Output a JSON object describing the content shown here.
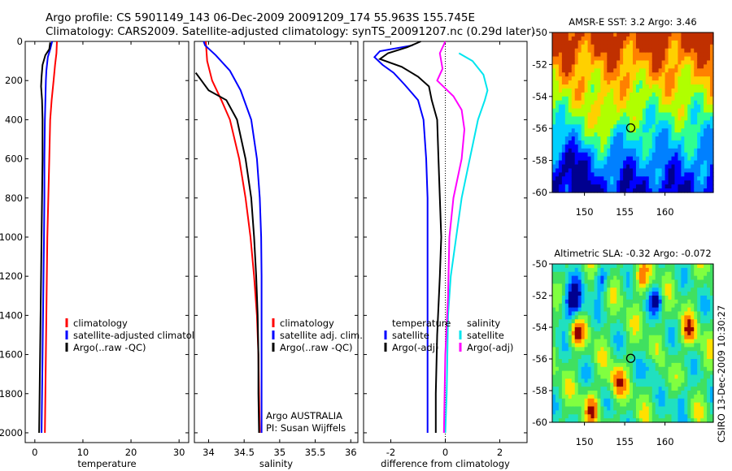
{
  "header": {
    "line1": "Argo profile: CS 5901149_143 06-Dec-2009 20091209_174 55.963S 155.745E",
    "line2": "Climatology: CARS2009. Satellite-adjusted climatology: synTS_20091207.nc (0.29d later)"
  },
  "colors": {
    "climatology": "#ff0000",
    "satellite": "#0000ff",
    "argo": "#000000",
    "satellite_diff": "#00e5ee",
    "argo_adj_diff": "#ff00ff"
  },
  "chart_data": [
    {
      "type": "line",
      "id": "temperature",
      "xlabel": "temperature",
      "ylabel": "",
      "xlim": [
        -2,
        32
      ],
      "ylim": [
        2050,
        0
      ],
      "xticks": [
        0,
        10,
        20,
        30
      ],
      "yticks": [
        0,
        200,
        400,
        600,
        800,
        1000,
        1200,
        1400,
        1600,
        1800,
        2000
      ],
      "legend": [
        "climatology",
        "satellite-adjusted climatology",
        "Argo(..raw -QC)"
      ],
      "legend_position": "lower-right",
      "series": [
        {
          "name": "climatology",
          "color": "#ff0000",
          "points": [
            [
              4.6,
              0
            ],
            [
              4.5,
              60
            ],
            [
              4.2,
              120
            ],
            [
              3.9,
              200
            ],
            [
              3.5,
              300
            ],
            [
              3.2,
              400
            ],
            [
              3.0,
              600
            ],
            [
              2.8,
              800
            ],
            [
              2.6,
              1000
            ],
            [
              2.5,
              1200
            ],
            [
              2.4,
              1400
            ],
            [
              2.3,
              1600
            ],
            [
              2.2,
              1800
            ],
            [
              2.1,
              2000
            ]
          ]
        },
        {
          "name": "satellite-adjusted climatology",
          "color": "#0000ff",
          "points": [
            [
              3.6,
              0
            ],
            [
              3.2,
              40
            ],
            [
              2.7,
              80
            ],
            [
              2.4,
              150
            ],
            [
              2.3,
              200
            ],
            [
              2.2,
              300
            ],
            [
              2.1,
              400
            ],
            [
              2.0,
              600
            ],
            [
              2.0,
              800
            ],
            [
              1.9,
              1000
            ],
            [
              1.8,
              1200
            ],
            [
              1.7,
              1400
            ],
            [
              1.6,
              1600
            ],
            [
              1.5,
              1800
            ],
            [
              1.4,
              2000
            ]
          ]
        },
        {
          "name": "Argo(..raw -QC)",
          "color": "#000000",
          "points": [
            [
              3.2,
              5
            ],
            [
              3.0,
              40
            ],
            [
              2.2,
              70
            ],
            [
              1.6,
              120
            ],
            [
              1.4,
              180
            ],
            [
              1.3,
              230
            ],
            [
              1.5,
              300
            ],
            [
              1.6,
              400
            ],
            [
              1.6,
              600
            ],
            [
              1.5,
              800
            ],
            [
              1.4,
              1000
            ],
            [
              1.3,
              1200
            ],
            [
              1.2,
              1400
            ],
            [
              1.1,
              1600
            ],
            [
              1.0,
              1800
            ],
            [
              0.9,
              2000
            ]
          ]
        }
      ]
    },
    {
      "type": "line",
      "id": "salinity",
      "xlabel": "salinity",
      "ylabel": "",
      "xlim": [
        33.8,
        36.1
      ],
      "ylim": [
        2050,
        0
      ],
      "xticks": [
        34,
        34.5,
        35,
        35.5,
        36
      ],
      "legend": [
        "climatology",
        "satellite adj. clim.",
        "Argo(..raw -QC)"
      ],
      "legend_position": "lower-right",
      "annotations": [
        "Argo AUSTRALIA",
        "PI: Susan Wijffels"
      ],
      "series": [
        {
          "name": "climatology",
          "color": "#ff0000",
          "points": [
            [
              33.96,
              0
            ],
            [
              33.98,
              100
            ],
            [
              34.05,
              200
            ],
            [
              34.18,
              300
            ],
            [
              34.3,
              400
            ],
            [
              34.43,
              600
            ],
            [
              34.52,
              800
            ],
            [
              34.59,
              1000
            ],
            [
              34.64,
              1200
            ],
            [
              34.68,
              1400
            ],
            [
              34.7,
              1600
            ],
            [
              34.71,
              1800
            ],
            [
              34.72,
              2000
            ]
          ]
        },
        {
          "name": "satellite adj. clim.",
          "color": "#0000ff",
          "points": [
            [
              33.93,
              0
            ],
            [
              33.95,
              20
            ],
            [
              34.1,
              70
            ],
            [
              34.3,
              150
            ],
            [
              34.45,
              250
            ],
            [
              34.6,
              400
            ],
            [
              34.68,
              600
            ],
            [
              34.72,
              800
            ],
            [
              34.74,
              1000
            ],
            [
              34.745,
              1200
            ],
            [
              34.745,
              1400
            ],
            [
              34.745,
              1600
            ],
            [
              34.745,
              2000
            ]
          ]
        },
        {
          "name": "Argo(..raw -QC)",
          "color": "#000000",
          "points": [
            [
              33.82,
              160
            ],
            [
              33.9,
              200
            ],
            [
              34.0,
              250
            ],
            [
              34.25,
              300
            ],
            [
              34.4,
              400
            ],
            [
              34.52,
              600
            ],
            [
              34.6,
              800
            ],
            [
              34.64,
              1000
            ],
            [
              34.67,
              1200
            ],
            [
              34.69,
              1400
            ],
            [
              34.7,
              1600
            ],
            [
              34.7,
              1800
            ],
            [
              34.71,
              2000
            ]
          ]
        }
      ]
    },
    {
      "type": "line",
      "id": "difference",
      "xlabel": "difference from climatology",
      "ylabel": "",
      "xlim": [
        -3,
        3
      ],
      "ylim": [
        2050,
        0
      ],
      "xticks": [
        -2,
        0,
        2
      ],
      "legend_groups": [
        {
          "title": "temperature",
          "items": [
            "satellite",
            "Argo(-adj)"
          ]
        },
        {
          "title": "salinity",
          "items": [
            "satellite",
            "Argo(-adj)"
          ]
        }
      ],
      "legend_position": "lower-center",
      "series": [
        {
          "name": "satellite",
          "group": "temperature",
          "color": "#0000ff",
          "points": [
            [
              -1.2,
              20
            ],
            [
              -2.4,
              50
            ],
            [
              -2.6,
              80
            ],
            [
              -2.3,
              120
            ],
            [
              -1.9,
              160
            ],
            [
              -1.5,
              220
            ],
            [
              -1.0,
              300
            ],
            [
              -0.8,
              400
            ],
            [
              -0.7,
              600
            ],
            [
              -0.65,
              800
            ],
            [
              -0.65,
              1000
            ],
            [
              -0.65,
              1400
            ],
            [
              -0.65,
              2000
            ]
          ]
        },
        {
          "name": "Argo(-adj)",
          "group": "temperature",
          "color": "#000000",
          "points": [
            [
              -0.9,
              0
            ],
            [
              -1.4,
              30
            ],
            [
              -2.1,
              60
            ],
            [
              -2.4,
              90
            ],
            [
              -1.6,
              130
            ],
            [
              -1.0,
              180
            ],
            [
              -0.6,
              230
            ],
            [
              -0.5,
              300
            ],
            [
              -0.3,
              400
            ],
            [
              -0.25,
              600
            ],
            [
              -0.2,
              800
            ],
            [
              -0.15,
              1000
            ],
            [
              -0.2,
              1200
            ],
            [
              -0.3,
              1500
            ],
            [
              -0.35,
              1800
            ],
            [
              -0.35,
              2000
            ]
          ]
        },
        {
          "name": "satellite",
          "group": "salinity",
          "color": "#00e5ee",
          "points": [
            [
              0.5,
              60
            ],
            [
              1.0,
              100
            ],
            [
              1.4,
              170
            ],
            [
              1.55,
              250
            ],
            [
              1.45,
              300
            ],
            [
              1.2,
              400
            ],
            [
              0.9,
              600
            ],
            [
              0.6,
              800
            ],
            [
              0.4,
              1000
            ],
            [
              0.2,
              1200
            ],
            [
              0.1,
              1400
            ],
            [
              0.05,
              1800
            ],
            [
              0.0,
              2000
            ]
          ]
        },
        {
          "name": "Argo(-adj)",
          "group": "salinity",
          "color": "#ff00ff",
          "points": [
            [
              0.0,
              0
            ],
            [
              -0.2,
              60
            ],
            [
              -0.1,
              140
            ],
            [
              -0.3,
              200
            ],
            [
              0.3,
              280
            ],
            [
              0.6,
              350
            ],
            [
              0.7,
              450
            ],
            [
              0.6,
              600
            ],
            [
              0.3,
              800
            ],
            [
              0.15,
              1000
            ],
            [
              0.1,
              1300
            ],
            [
              0.0,
              1600
            ],
            [
              -0.05,
              2000
            ]
          ]
        }
      ]
    },
    {
      "type": "heatmap",
      "id": "sst-map",
      "title": "AMSR-E SST: 3.2 Argo: 3.46",
      "xlim": [
        146,
        166
      ],
      "ylim": [
        -60,
        -50
      ],
      "xticks": [
        150,
        155,
        160
      ],
      "yticks": [
        -50,
        -52,
        -54,
        -56,
        -58,
        -60
      ],
      "marker": {
        "lon": 155.745,
        "lat": -55.963,
        "shape": "circle"
      },
      "colormap": [
        "#00008f",
        "#0000ff",
        "#0080ff",
        "#00d0ff",
        "#30ff90",
        "#b0ff00",
        "#ffd000",
        "#ff8000",
        "#c03000"
      ]
    },
    {
      "type": "heatmap",
      "id": "sla-map",
      "title": "Altimetric SLA: -0.32 Argo: -0.072",
      "xlim": [
        146,
        166
      ],
      "ylim": [
        -60,
        -50
      ],
      "xticks": [
        150,
        155,
        160
      ],
      "yticks": [
        -50,
        -52,
        -54,
        -56,
        -58,
        -60
      ],
      "marker": {
        "lon": 155.745,
        "lat": -55.963,
        "shape": "circle"
      },
      "colormap": [
        "#00008f",
        "#0040ff",
        "#00b0ff",
        "#20e0c0",
        "#40e060",
        "#80ff40",
        "#ffe000",
        "#ff8000",
        "#900000"
      ]
    }
  ],
  "side_note": "CSIRO 13-Dec-2009 10:30:27"
}
